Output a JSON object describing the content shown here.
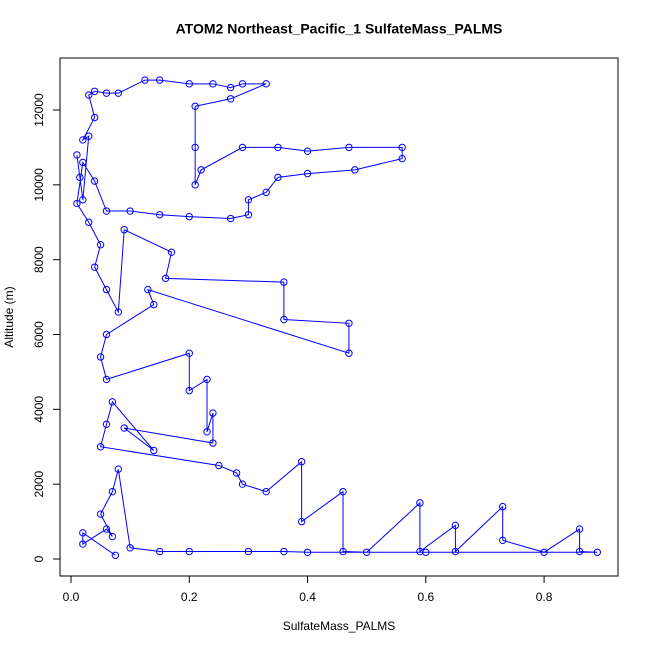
{
  "chart_data": {
    "type": "line",
    "marker": "circle",
    "color": "#0000ff",
    "title": "ATOM2 Northeast_Pacific_1 SulfateMass_PALMS",
    "x_label": "SulfateMass_PALMS",
    "y_label": "Altitude (m)",
    "xlim": [
      -0.0186,
      0.925
    ],
    "ylim": [
      -454,
      13390
    ],
    "xticks": [
      {
        "value": 0,
        "label": "0.0"
      },
      0.2,
      0.4,
      0.6,
      0.8
    ],
    "yticks": [
      0,
      2000,
      4000,
      6000,
      8000,
      10000,
      12000
    ],
    "x": [
      0.01,
      0.015,
      0.02,
      0.03,
      0.02,
      0.04,
      0.03,
      0.04,
      0.06,
      0.08,
      0.125,
      0.15,
      0.2,
      0.24,
      0.27,
      0.29,
      0.33,
      0.27,
      0.21,
      0.21,
      0.21,
      0.22,
      0.29,
      0.35,
      0.4,
      0.47,
      0.56,
      0.56,
      0.48,
      0.4,
      0.35,
      0.33,
      0.3,
      0.3,
      0.27,
      0.2,
      0.15,
      0.1,
      0.06,
      0.04,
      0.02,
      0.01,
      0.03,
      0.05,
      0.04,
      0.06,
      0.08,
      0.09,
      0.17,
      0.16,
      0.36,
      0.36,
      0.47,
      0.47,
      0.13,
      0.14,
      0.06,
      0.05,
      0.06,
      0.2,
      0.2,
      0.23,
      0.23,
      0.24,
      0.24,
      0.09,
      0.14,
      0.07,
      0.06,
      0.05,
      0.25,
      0.28,
      0.29,
      0.33,
      0.39,
      0.39,
      0.46,
      0.46,
      0.5,
      0.59,
      0.59,
      0.65,
      0.65,
      0.73,
      0.73,
      0.8,
      0.86,
      0.86,
      0.89,
      0.6,
      0.4,
      0.36,
      0.3,
      0.2,
      0.15,
      0.1,
      0.08,
      0.07,
      0.05,
      0.07,
      0.06,
      0.02,
      0.02,
      0.075
    ],
    "values": [
      10800,
      10200,
      9600,
      11300,
      11200,
      11800,
      12400,
      12500,
      12450,
      12450,
      12800,
      12800,
      12700,
      12700,
      12600,
      12700,
      12700,
      12300,
      12100,
      11000,
      10000,
      10400,
      11000,
      11000,
      10900,
      11000,
      11000,
      10700,
      10400,
      10300,
      10200,
      9800,
      9600,
      9200,
      9100,
      9150,
      9200,
      9300,
      9300,
      10100,
      10600,
      9500,
      9000,
      8400,
      7800,
      7200,
      6600,
      8800,
      8200,
      7500,
      7400,
      6400,
      6300,
      5500,
      7200,
      6800,
      6000,
      5400,
      4800,
      5500,
      4500,
      4800,
      3400,
      3900,
      3100,
      3500,
      2900,
      4200,
      3600,
      3000,
      2500,
      2300,
      2000,
      1800,
      2600,
      1000,
      1800,
      200,
      180,
      1500,
      200,
      900,
      200,
      1400,
      500,
      180,
      800,
      200,
      180,
      180,
      180,
      200,
      200,
      200,
      200,
      300,
      2400,
      1800,
      1200,
      600,
      800,
      400,
      700,
      100
    ]
  }
}
